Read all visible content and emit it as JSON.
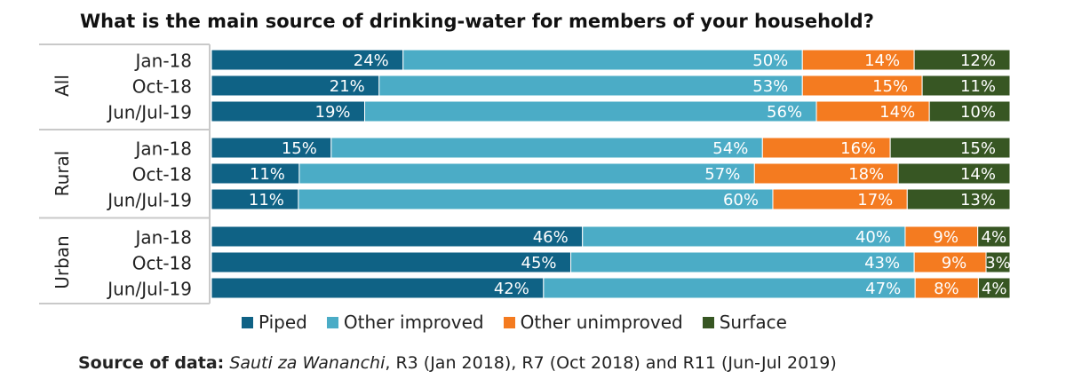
{
  "chart_data": {
    "type": "bar",
    "orientation": "horizontal",
    "stacked": "100%",
    "title": "What is the main source of drinking-water for members of your household?",
    "groups": [
      {
        "label": "All",
        "categories": [
          "Jan-18",
          "Oct-18",
          "Jun/Jul-19"
        ]
      },
      {
        "label": "Rural",
        "categories": [
          "Jan-18",
          "Oct-18",
          "Jun/Jul-19"
        ]
      },
      {
        "label": "Urban",
        "categories": [
          "Jan-18",
          "Oct-18",
          "Jun/Jul-19"
        ]
      }
    ],
    "series": [
      {
        "name": "Piped",
        "color": "#0f6285",
        "values": [
          [
            24,
            21,
            19
          ],
          [
            15,
            11,
            11
          ],
          [
            46,
            45,
            42
          ]
        ],
        "labels": [
          [
            "24%",
            "21%",
            "19%"
          ],
          [
            "15%",
            "11%",
            "11%"
          ],
          [
            "46%",
            "45%",
            "42%"
          ]
        ]
      },
      {
        "name": "Other improved",
        "color": "#4bacc6",
        "values": [
          [
            50,
            53,
            56
          ],
          [
            54,
            57,
            60
          ],
          [
            40,
            43,
            47
          ]
        ],
        "labels": [
          [
            "50%",
            "53%",
            "56%"
          ],
          [
            "54%",
            "57%",
            "60%"
          ],
          [
            "40%",
            "43%",
            "47%"
          ]
        ]
      },
      {
        "name": "Other unimproved",
        "color": "#f47b20",
        "values": [
          [
            14,
            15,
            14
          ],
          [
            16,
            18,
            17
          ],
          [
            9,
            9,
            8
          ]
        ],
        "labels": [
          [
            "14%",
            "15%",
            "14%"
          ],
          [
            "16%",
            "18%",
            "17%"
          ],
          [
            "9%",
            "9%",
            "8%"
          ]
        ]
      },
      {
        "name": "Surface",
        "color": "#375623",
        "values": [
          [
            12,
            11,
            10
          ],
          [
            15,
            14,
            13
          ],
          [
            4,
            3,
            4
          ]
        ],
        "labels": [
          [
            "12%",
            "11%",
            "10%"
          ],
          [
            "15%",
            "14%",
            "13%"
          ],
          [
            "4%",
            "3%",
            "4%"
          ]
        ]
      }
    ],
    "legend_position": "bottom",
    "grid": false
  },
  "source": {
    "label": "Source of data:",
    "publication": "Sauti za Wananchi",
    "detail": ", R3 (Jan 2018), R7 (Oct 2018) and R11 (Jun-Jul 2019)"
  }
}
